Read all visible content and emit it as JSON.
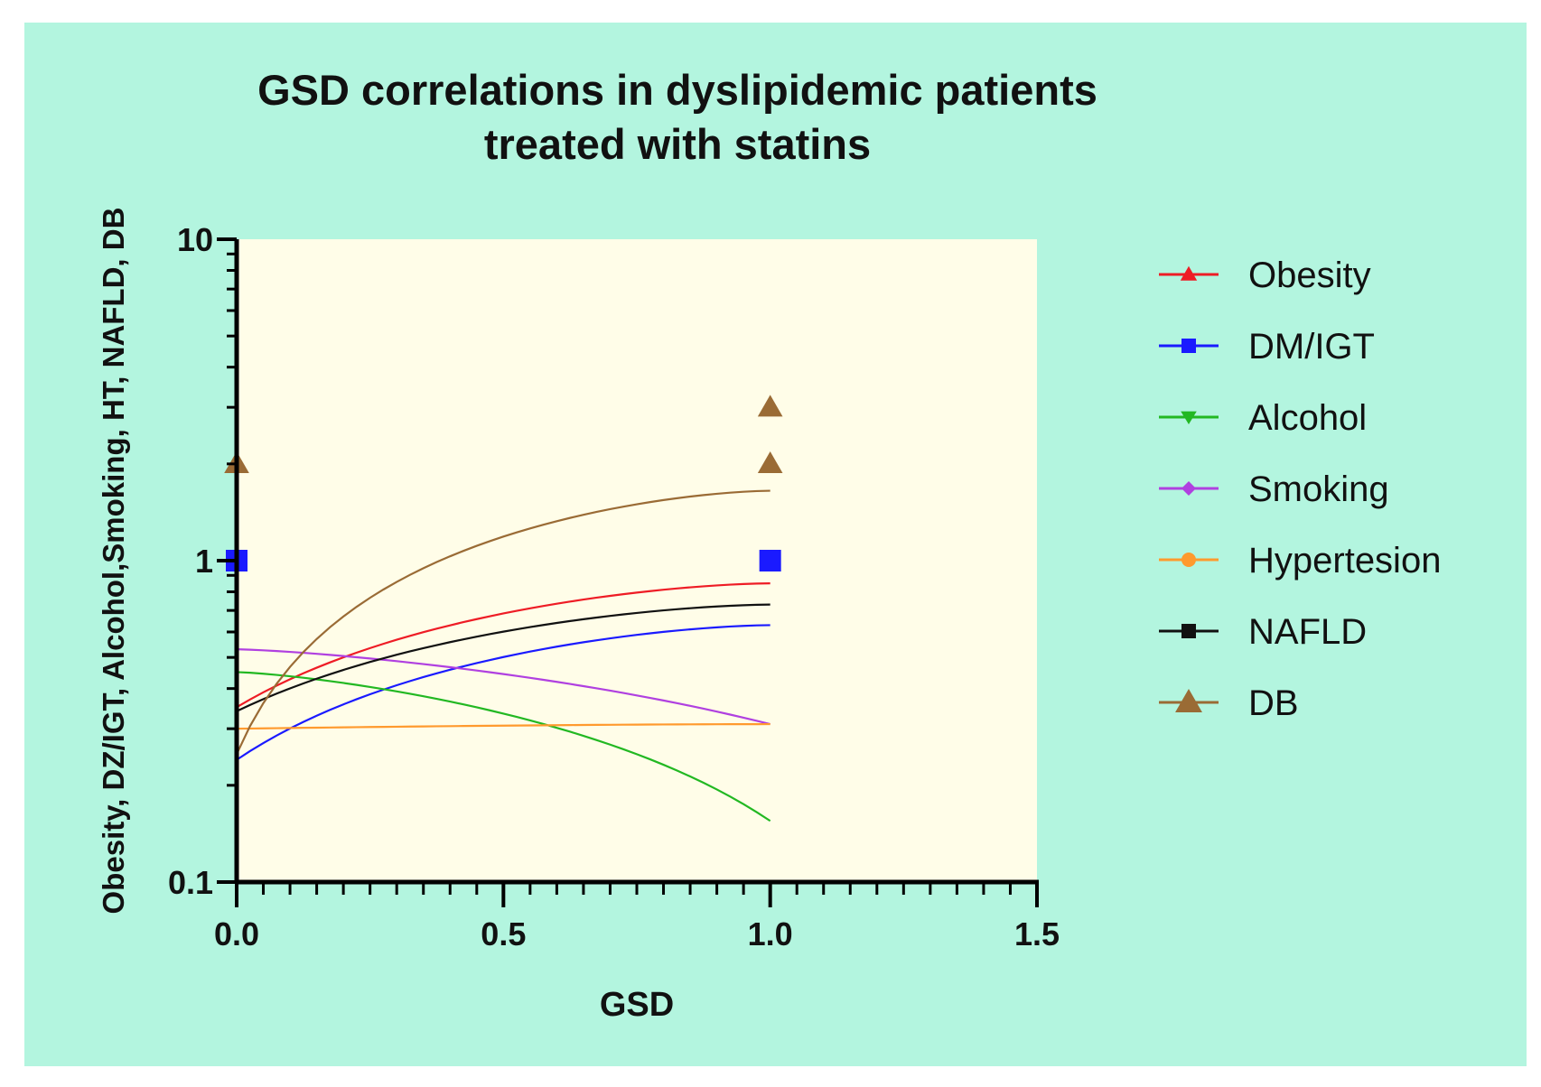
{
  "chart_data": {
    "type": "scatter",
    "title_line1": "GSD correlations in  dyslipidemic patients",
    "title_line2": "treated with statins",
    "xlabel": "GSD",
    "ylabel": "Obesity, DZ/IGT, Alcohol,Smoking, HT, NAFLD, DB",
    "xlim": [
      0,
      1.5
    ],
    "ylim": [
      0.1,
      10
    ],
    "yscale": "log",
    "x_ticks": [
      "0.0",
      "0.5",
      "1.0",
      "1.5"
    ],
    "x_tick_values": [
      0,
      0.5,
      1.0,
      1.5
    ],
    "y_ticks": [
      "0.1",
      "1",
      "10"
    ],
    "y_tick_values": [
      0.1,
      1,
      10
    ],
    "legend_position": "right",
    "series": [
      {
        "name": "Obesity",
        "color": "#ee1c25",
        "marker": "triangle-up",
        "points": [],
        "curve": {
          "x0": 0,
          "y0": 0.35,
          "x1": 1,
          "y1": 0.85
        }
      },
      {
        "name": "DM/IGT",
        "color": "#1a1aff",
        "marker": "square",
        "points": [
          [
            0,
            1
          ],
          [
            1,
            1
          ]
        ],
        "curve": {
          "x0": 0,
          "y0": 0.24,
          "x1": 1,
          "y1": 0.63
        }
      },
      {
        "name": "Alcohol",
        "color": "#22b822",
        "marker": "triangle-down",
        "points": [],
        "curve": {
          "x0": 0,
          "y0": 0.45,
          "x1": 1,
          "y1": 0.155
        }
      },
      {
        "name": "Smoking",
        "color": "#b040e0",
        "marker": "diamond",
        "points": [],
        "curve": {
          "x0": 0,
          "y0": 0.53,
          "x1": 1,
          "y1": 0.31
        }
      },
      {
        "name": "Hypertesion",
        "color": "#ff9a2e",
        "marker": "circle",
        "points": [],
        "curve": {
          "x0": 0,
          "y0": 0.3,
          "x1": 1,
          "y1": 0.31
        }
      },
      {
        "name": "NAFLD",
        "color": "#111111",
        "marker": "square",
        "points": [],
        "curve": {
          "x0": 0,
          "y0": 0.34,
          "x1": 1,
          "y1": 0.73
        }
      },
      {
        "name": "DB",
        "color": "#9a6b35",
        "marker": "triangle-up",
        "points": [
          [
            0,
            2
          ],
          [
            1,
            3
          ],
          [
            1,
            2
          ]
        ],
        "curve": {
          "x0": 0,
          "y0": 0.25,
          "x1": 1,
          "y1": 1.65
        }
      }
    ]
  }
}
